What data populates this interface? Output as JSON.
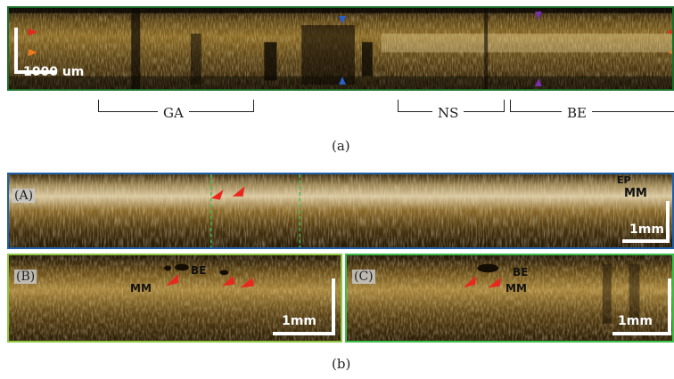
{
  "panel_a": {
    "scale_label": "1000 um",
    "regions": [
      "GA",
      "NS",
      "BE"
    ],
    "caption": "(a)"
  },
  "panel_b": {
    "caption": "(b)",
    "inset_A": {
      "tag": "(A)",
      "labels": [
        "EP",
        "MM"
      ],
      "scale_label": "1mm"
    },
    "inset_B": {
      "tag": "(B)",
      "labels": [
        "BE",
        "MM"
      ],
      "scale_label": "1mm"
    },
    "inset_C": {
      "tag": "(C)",
      "labels": [
        "BE",
        "MM"
      ],
      "scale_label": "1mm"
    }
  },
  "colors": {
    "frame_a": "#1a6e2a",
    "frame_A": "#1f5fa8",
    "frame_BC": "#8ec641",
    "arrow_red": "#e8281e",
    "arrow_orange": "#f07a1e",
    "arrow_blue": "#2a5fc8",
    "arrow_purple": "#7a2fb0",
    "dashed_green": "#3bbf4a"
  }
}
